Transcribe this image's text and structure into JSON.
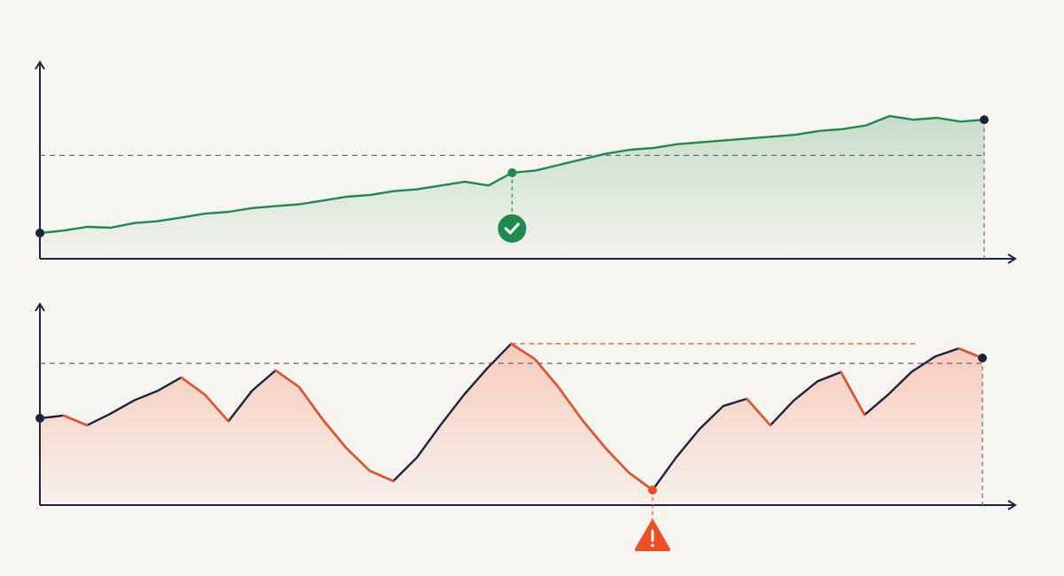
{
  "chart_data": [
    {
      "type": "line",
      "x": [
        0,
        1,
        2,
        3,
        4,
        5,
        6,
        7,
        8,
        9,
        10,
        11,
        12,
        13,
        14,
        15,
        16,
        17,
        18,
        19,
        20,
        21,
        22,
        23,
        24,
        25,
        26,
        27,
        28,
        29,
        30,
        31,
        32,
        33,
        34,
        35,
        36,
        37,
        38,
        39,
        40
      ],
      "series": [
        {
          "color": "#1e8a4c",
          "values": [
            13.7,
            15,
            17,
            16.5,
            19,
            20,
            22,
            24,
            25,
            27,
            28,
            29,
            31,
            33,
            34,
            36,
            37,
            39,
            41,
            39,
            45.8,
            47,
            50,
            53,
            56,
            58,
            59,
            61,
            62,
            63,
            64,
            65,
            66,
            68,
            69,
            71,
            76,
            74,
            75,
            73,
            74
          ]
        }
      ],
      "xlim": [
        0,
        40
      ],
      "ylim": [
        0,
        100
      ],
      "reference": 55,
      "highlight_x": 20,
      "fill": true
    },
    {
      "type": "line",
      "x": [
        0,
        1,
        2,
        3,
        4,
        5,
        6,
        7,
        8,
        9,
        10,
        11,
        12,
        13,
        14,
        15,
        16,
        17,
        18,
        19,
        20,
        21,
        22,
        23,
        24,
        25,
        26,
        27,
        28,
        29,
        30,
        31,
        32,
        33,
        34,
        35,
        36,
        37,
        38,
        39,
        40
      ],
      "series": [
        {
          "color": "#1b2340",
          "down_color": "#f04e23",
          "values": [
            45.6,
            47,
            41.9,
            48,
            55,
            60,
            67,
            58,
            44,
            60,
            70.7,
            62,
            45,
            30,
            18,
            12.6,
            25,
            42,
            58,
            72,
            84.7,
            76.7,
            62,
            45,
            30,
            17,
            7.9,
            25,
            40,
            52,
            55.8,
            41.9,
            55,
            65,
            69.8,
            47.4,
            58,
            70,
            78,
            82.3,
            77.2
          ]
        }
      ],
      "xlim": [
        0,
        40
      ],
      "ylim": [
        0,
        100
      ],
      "reference": 74.4,
      "highlight_x": 26,
      "peak_x": 20,
      "peak_line_end_x": 37.2,
      "fill": true
    }
  ]
}
